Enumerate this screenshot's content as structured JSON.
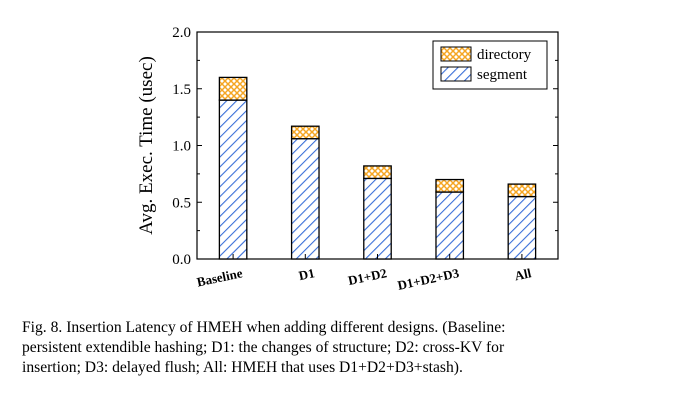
{
  "chart_data": {
    "type": "bar",
    "stacked": true,
    "categories": [
      "Baseline",
      "D1",
      "D1+D2",
      "D1+D2+D3",
      "All"
    ],
    "series": [
      {
        "name": "segment",
        "values": [
          1.4,
          1.06,
          0.71,
          0.59,
          0.55
        ],
        "color": "#3a6fd8",
        "pattern": "diagonal-hatch"
      },
      {
        "name": "directory",
        "values": [
          0.2,
          0.11,
          0.11,
          0.11,
          0.11
        ],
        "color": "#f5a623",
        "pattern": "cross-hatch"
      }
    ],
    "ylabel": "Avg. Exec. Time (usec)",
    "xlabel": "",
    "ylim": [
      0,
      2.0
    ],
    "yticks": [
      "0.0",
      "0.5",
      "1.0",
      "1.5",
      "2.0"
    ],
    "legend": {
      "position": "top-right",
      "order": [
        "directory",
        "segment"
      ]
    },
    "grid": false
  },
  "caption": {
    "lines": [
      "Fig. 8.  Insertion Latency of HMEH when adding different designs. (Baseline:",
      "persistent extendible hashing; D1: the changes of structure; D2: cross-KV for",
      "insertion; D3: delayed flush; All: HMEH that uses D1+D2+D3+stash)."
    ]
  }
}
